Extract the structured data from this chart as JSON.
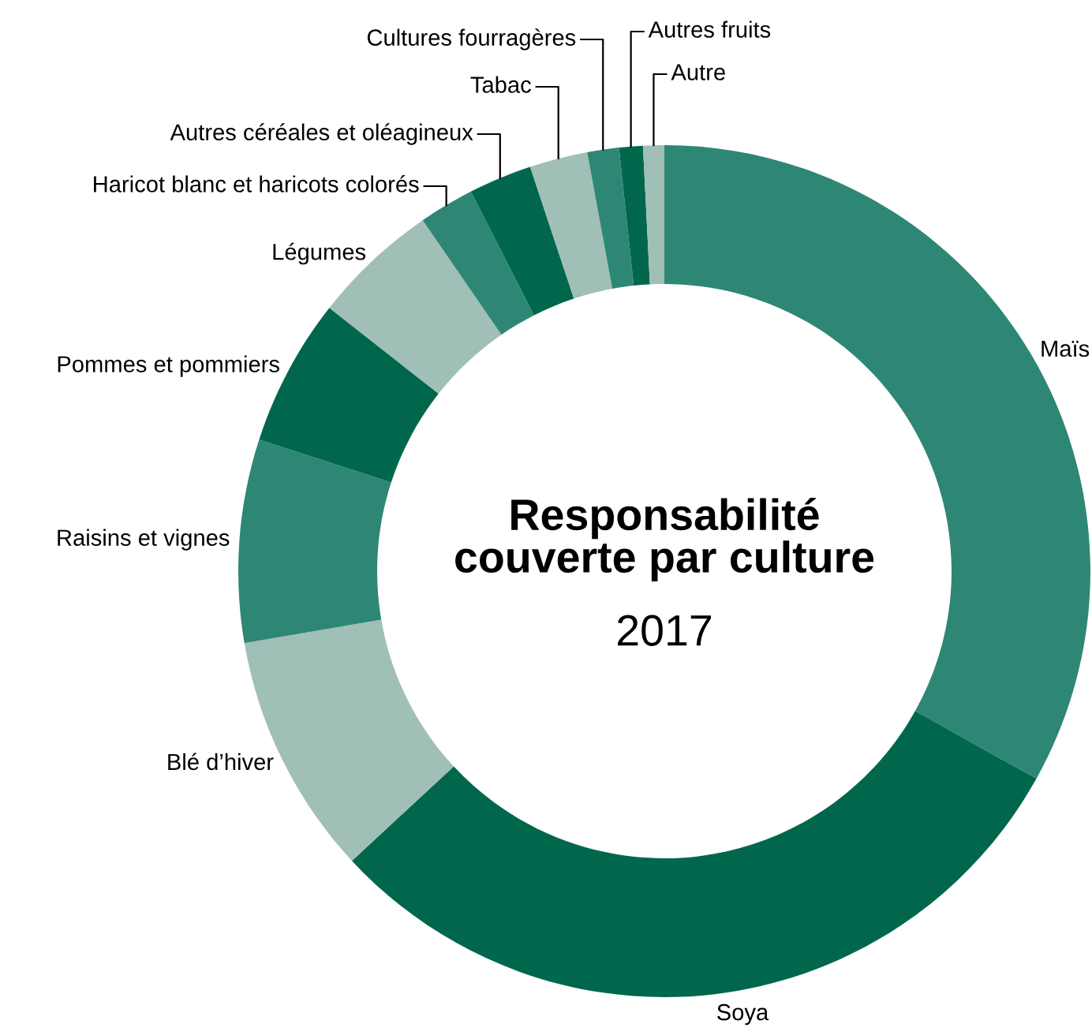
{
  "chart_data": {
    "type": "donut",
    "title": "Responsabilité\ncouverte par culture",
    "subtitle": "2017",
    "categories": [
      "Maïs",
      "Soya",
      "Blé d’hiver",
      "Raisins et vignes",
      "Pommes et pommiers",
      "Légumes",
      "Haricot blanc et haricots colorés",
      "Autres céréales et oléagineux",
      "Tabac",
      "Cultures fourragères",
      "Autres fruits",
      "Autre"
    ],
    "values": [
      33.1,
      30,
      9.2,
      7.7,
      5.6,
      4.8,
      2.1,
      2.4,
      2.2,
      1.2,
      0.9,
      0.8
    ],
    "colors": [
      "#2e8774",
      "#00674d",
      "#a0bfb7",
      "#2e8774",
      "#00674d",
      "#a0bfb7",
      "#2e8774",
      "#00674d",
      "#a0bfb7",
      "#2e8774",
      "#00674d",
      "#a0bfb7"
    ]
  }
}
